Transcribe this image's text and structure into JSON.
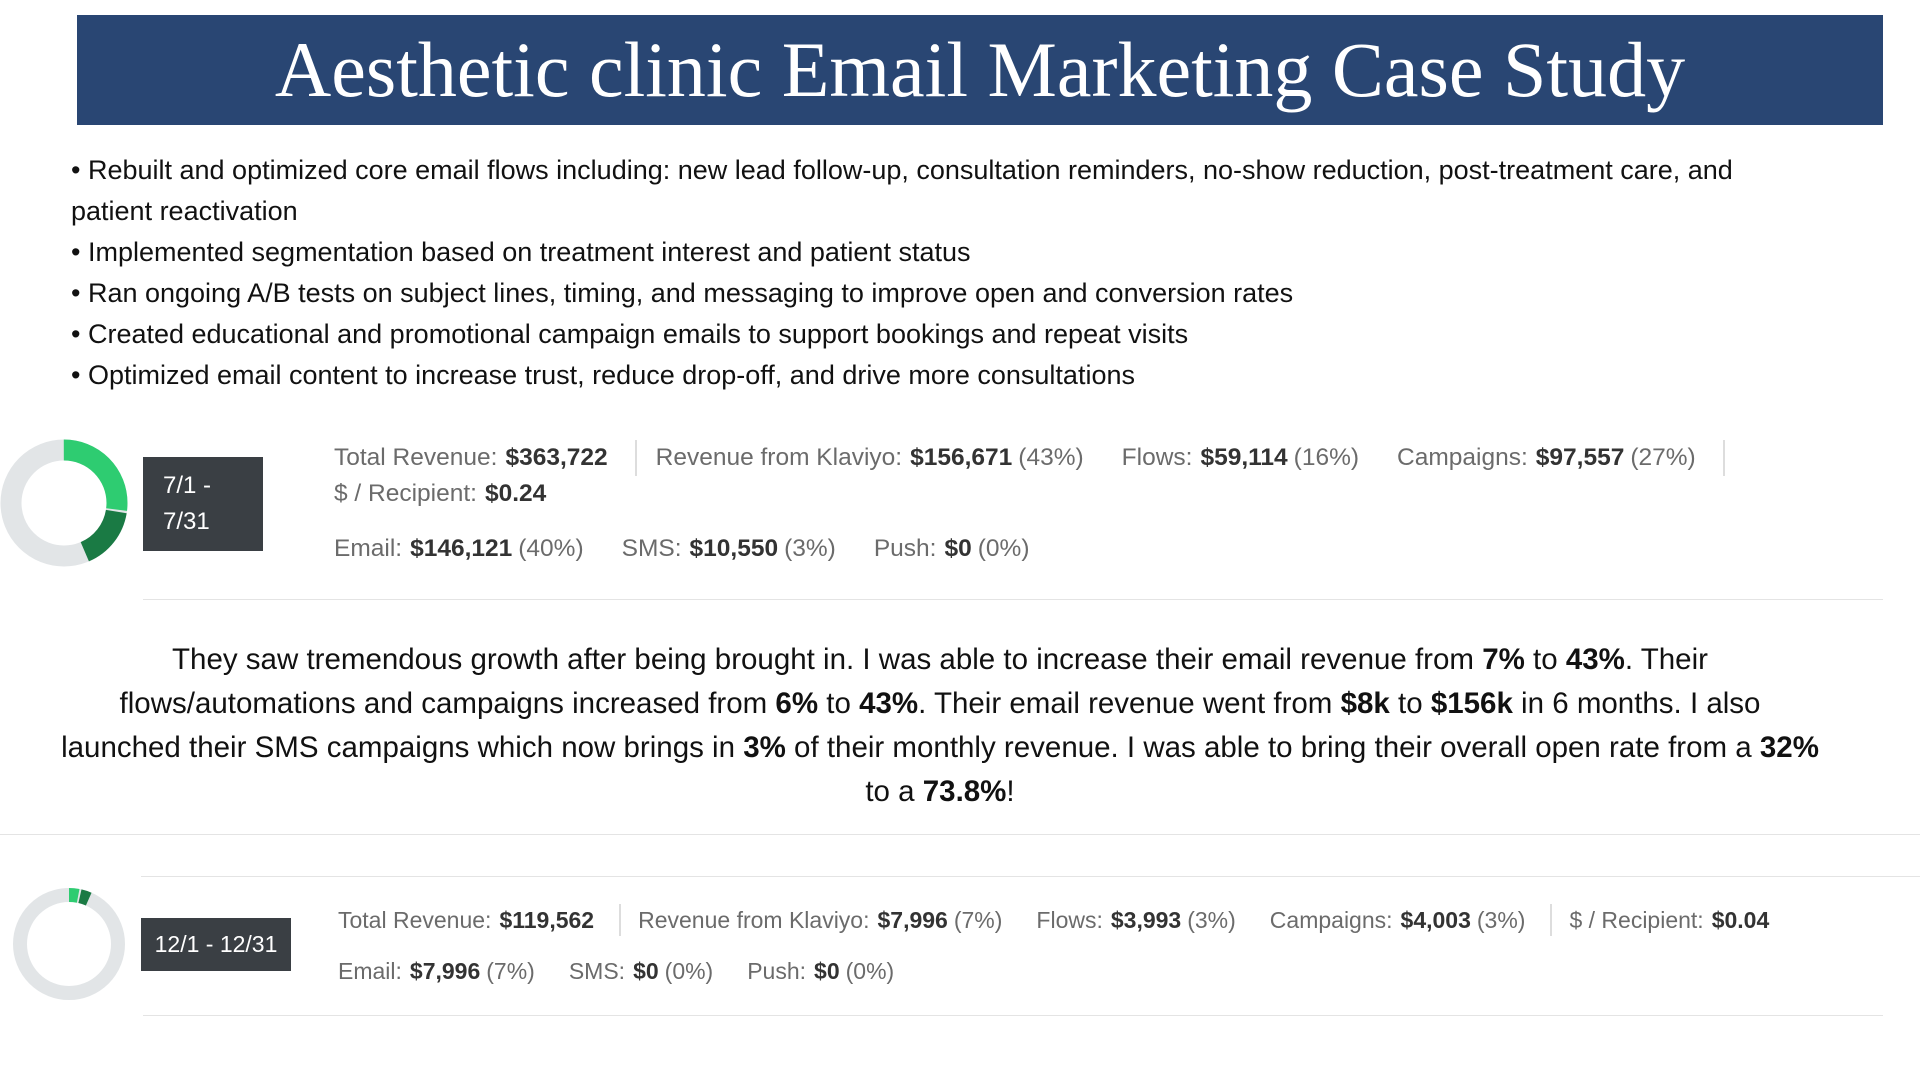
{
  "header": {
    "title": "Aesthetic clinic Email Marketing Case Study"
  },
  "bullets": [
    "• Rebuilt and optimized core email flows including: new lead follow-up, consultation reminders, no-show reduction, post-treatment care, and patient reactivation",
    "• Implemented segmentation based on treatment interest and patient status",
    "• Ran ongoing A/B tests on subject lines, timing, and messaging to improve open and conversion rates",
    "• Created educational and promotional campaign emails to support bookings and repeat visits",
    "• Optimized email content to increase trust, reduce drop-off, and drive more consultations"
  ],
  "panels": [
    {
      "date": "7/1 - 7/31",
      "row1": [
        {
          "label": "Total Revenue:",
          "value": "$363,722"
        },
        {
          "label": "Revenue from Klaviyo:",
          "value": "$156,671",
          "pct": {
            "value": 43,
            "label": "(43%)"
          }
        },
        {
          "label": "Flows:",
          "value": "$59,114",
          "pct": {
            "value": 16,
            "label": "(16%)"
          }
        },
        {
          "label": "Campaigns:",
          "value": "$97,557",
          "pct": {
            "value": 27,
            "label": "(27%)"
          }
        },
        {
          "label": "$ / Recipient:",
          "value": "$0.24"
        }
      ],
      "row2": [
        {
          "label": "Email:",
          "value": "$146,121",
          "pct": {
            "value": 40,
            "label": "(40%)"
          }
        },
        {
          "label": "SMS:",
          "value": "$10,550",
          "pct": {
            "value": 3,
            "label": "(3%)"
          }
        },
        {
          "label": "Push:",
          "value": "$0",
          "pct": {
            "value": 0,
            "label": "(0%)"
          }
        }
      ]
    },
    {
      "date": "12/1 - 12/31",
      "row1": [
        {
          "label": "Total Revenue:",
          "value": "$119,562"
        },
        {
          "label": "Revenue from Klaviyo:",
          "value": "$7,996",
          "pct": {
            "value": 7,
            "label": "(7%)"
          }
        },
        {
          "label": "Flows:",
          "value": "$3,993",
          "pct": {
            "value": 3,
            "label": "(3%)"
          }
        },
        {
          "label": "Campaigns:",
          "value": "$4,003",
          "pct": {
            "value": 3,
            "label": "(3%)"
          }
        },
        {
          "label": "$ / Recipient:",
          "value": "$0.04"
        }
      ],
      "row2": [
        {
          "label": "Email:",
          "value": "$7,996",
          "pct": {
            "value": 7,
            "label": "(7%)"
          }
        },
        {
          "label": "SMS:",
          "value": "$0",
          "pct": {
            "value": 0,
            "label": "(0%)"
          }
        },
        {
          "label": "Push:",
          "value": "$0",
          "pct": {
            "value": 0,
            "label": "(0%)"
          }
        }
      ]
    }
  ],
  "summary": [
    {
      "text": "They saw tremendous growth after being brought in. I was able to increase their email revenue from "
    },
    {
      "text": "7%",
      "bold": true
    },
    {
      "text": " to "
    },
    {
      "text": "43%",
      "bold": true
    },
    {
      "text": ". Their flows/automations and campaigns increased from "
    },
    {
      "text": "6%",
      "bold": true
    },
    {
      "text": " to "
    },
    {
      "text": "43%",
      "bold": true
    },
    {
      "text": ". Their email revenue went from "
    },
    {
      "text": "$8k",
      "bold": true
    },
    {
      "text": " to "
    },
    {
      "text": "$156k",
      "bold": true
    },
    {
      "text": " in 6 months. I also launched their SMS campaigns which now brings in "
    },
    {
      "text": "3%",
      "bold": true
    },
    {
      "text": " of their monthly revenue. I was able to bring their overall open rate from a "
    },
    {
      "text": "32%",
      "bold": true
    },
    {
      "text": " to a "
    },
    {
      "text": "73.8%",
      "bold": true
    },
    {
      "text": "!"
    }
  ]
}
